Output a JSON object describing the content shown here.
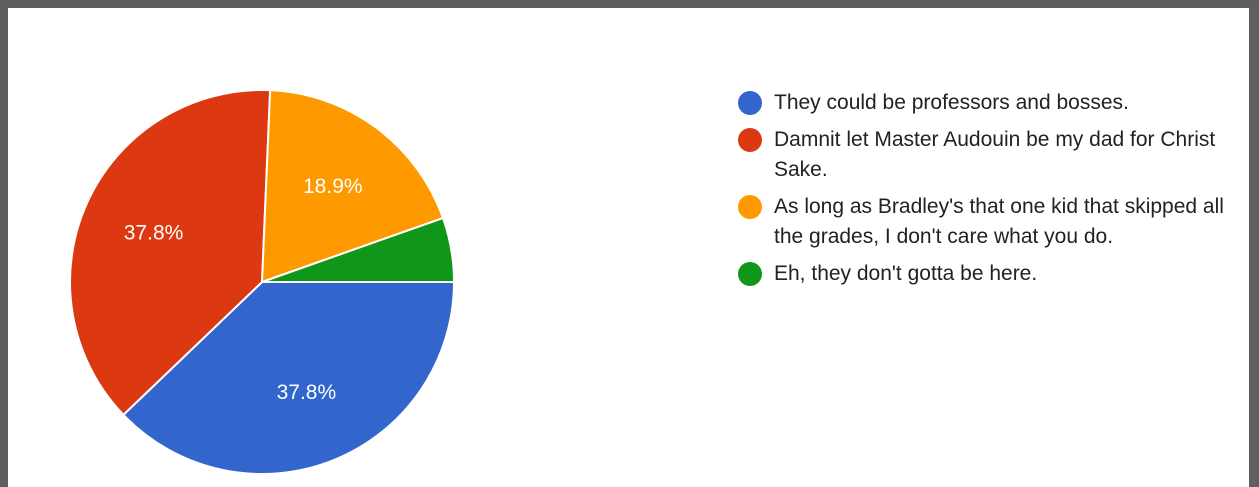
{
  "chart_data": {
    "type": "pie",
    "slices": [
      {
        "label": "They could be professors and bosses.",
        "value": 37.8,
        "color": "#3366cc",
        "data_label": "37.8%"
      },
      {
        "label": "Damnit let Master Audouin be my dad for Christ Sake.",
        "value": 37.8,
        "color": "#dc3912",
        "data_label": "37.8%"
      },
      {
        "label": "As long as Bradley's that one kid that skipped all the grades, I don't care what you do.",
        "value": 18.9,
        "color": "#ff9900",
        "data_label": "18.9%"
      },
      {
        "label": "Eh, they don't gotta be here.",
        "value": 5.4,
        "color": "#109618",
        "data_label": ""
      }
    ],
    "legend": {
      "position": "right",
      "entries": [
        "They could be professors and bosses.",
        "Damnit let Master Audouin be my dad for Christ Sake.",
        "As long as Bradley's that one kid that skipped all the grades, I don't care what you do.",
        "Eh, they don't gotta be here."
      ]
    }
  }
}
